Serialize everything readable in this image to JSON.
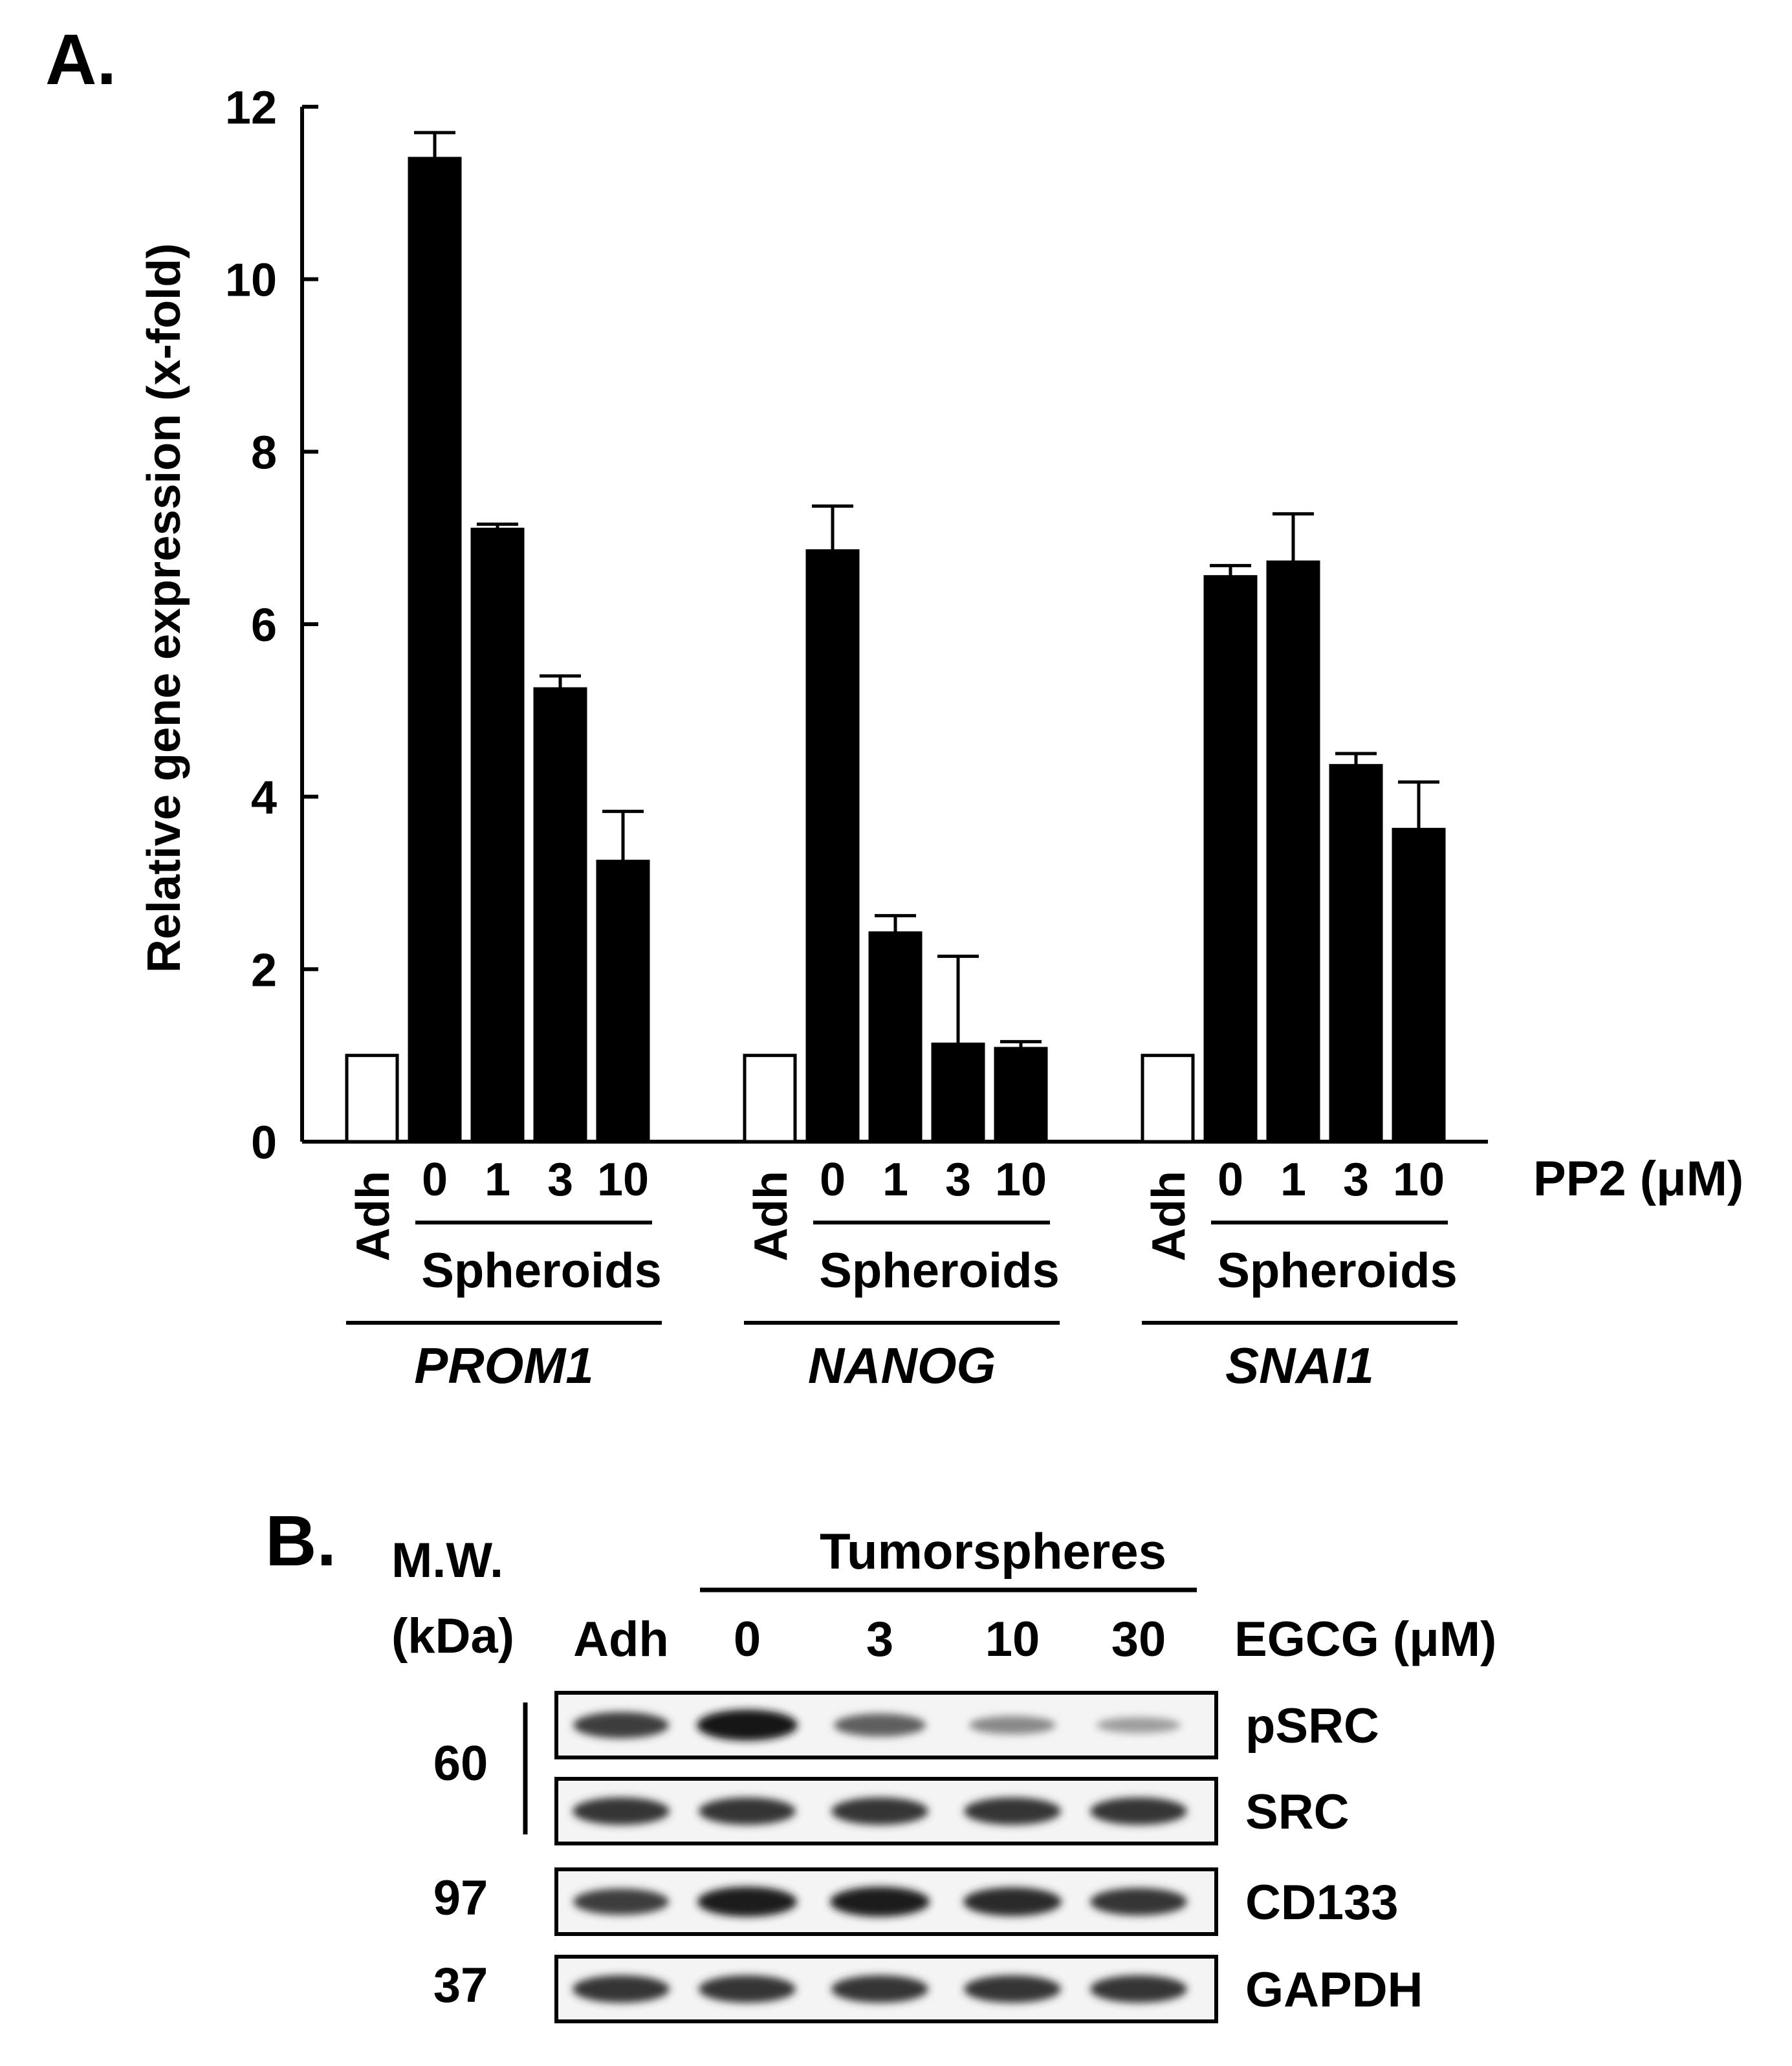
{
  "panel_a_label": "A.",
  "panel_b_label": "B.",
  "chart_data": {
    "type": "bar",
    "ylabel": "Relative gene expression (x-fold)",
    "ylim": [
      0,
      12
    ],
    "yticks": [
      "0",
      "2",
      "4",
      "6",
      "8",
      "10",
      "12"
    ],
    "treatment_label": "PP2 (μM)",
    "groups": [
      {
        "gene": "PROM1",
        "control_label": "Adh",
        "spheroid_label": "Spheroids",
        "categories": [
          "Adh",
          "0",
          "1",
          "3",
          "10"
        ],
        "values": [
          1.0,
          11.4,
          7.1,
          5.25,
          3.25
        ],
        "errors": [
          0,
          0.3,
          0.06,
          0.15,
          0.58
        ],
        "filled": [
          false,
          true,
          true,
          true,
          true
        ]
      },
      {
        "gene": "NANOG",
        "control_label": "Adh",
        "spheroid_label": "Spheroids",
        "categories": [
          "Adh",
          "0",
          "1",
          "3",
          "10"
        ],
        "values": [
          1.0,
          6.85,
          2.42,
          1.13,
          1.08
        ],
        "errors": [
          0,
          0.52,
          0.2,
          1.02,
          0.08
        ],
        "filled": [
          false,
          true,
          true,
          true,
          true
        ]
      },
      {
        "gene": "SNAI1",
        "control_label": "Adh",
        "spheroid_label": "Spheroids",
        "categories": [
          "Adh",
          "0",
          "1",
          "3",
          "10"
        ],
        "values": [
          1.0,
          6.55,
          6.72,
          4.36,
          3.62
        ],
        "errors": [
          0,
          0.13,
          0.56,
          0.14,
          0.55
        ],
        "filled": [
          false,
          true,
          true,
          true,
          true
        ]
      }
    ]
  },
  "blot": {
    "mw_header_line1": "M.W.",
    "mw_header_line2": "(kDa)",
    "group_label": "Tumorspheres",
    "treatment_label": "EGCG (μM)",
    "lanes": [
      "Adh",
      "0",
      "3",
      "10",
      "30"
    ],
    "rows": [
      {
        "label": "pSRC",
        "mw": "60",
        "intensity": [
          0.8,
          1.0,
          0.65,
          0.45,
          0.35
        ]
      },
      {
        "label": "SRC",
        "mw": "",
        "intensity": [
          0.85,
          0.85,
          0.85,
          0.85,
          0.85
        ]
      },
      {
        "label": "CD133",
        "mw": "97",
        "intensity": [
          0.8,
          0.95,
          0.95,
          0.9,
          0.85
        ]
      },
      {
        "label": "GAPDH",
        "mw": "37",
        "intensity": [
          0.85,
          0.85,
          0.85,
          0.85,
          0.85
        ]
      }
    ]
  }
}
